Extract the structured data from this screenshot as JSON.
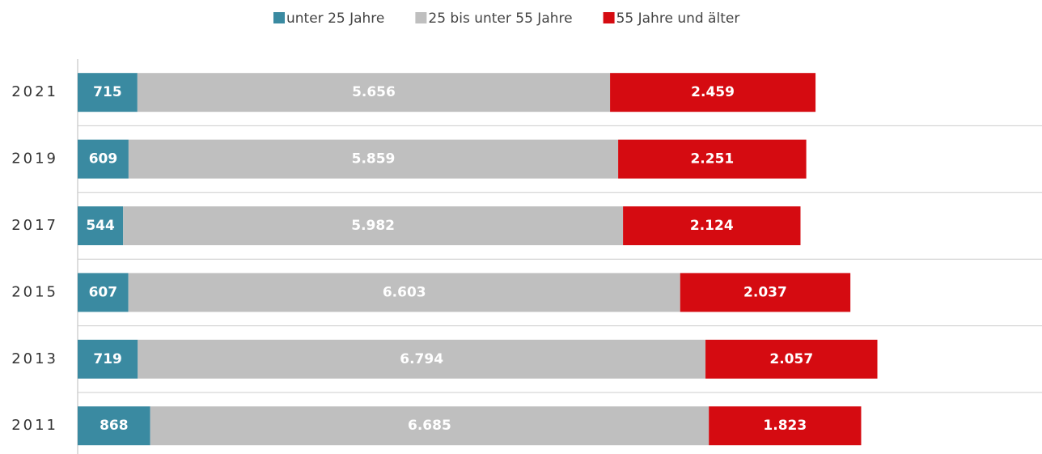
{
  "chart_data": {
    "type": "stacked-bar-horizontal",
    "categories": [
      "2021",
      "2019",
      "2017",
      "2015",
      "2013",
      "2011"
    ],
    "series": [
      {
        "name": "unter 25 Jahre",
        "color": "#3a8aa1",
        "values": [
          715,
          609,
          544,
          607,
          719,
          868
        ],
        "value_labels": [
          "715",
          "609",
          "544",
          "607",
          "719",
          "868"
        ]
      },
      {
        "name": "25 bis unter 55 Jahre",
        "color": "#bfbfbf",
        "values": [
          5656,
          5859,
          5982,
          6603,
          6794,
          6685
        ],
        "value_labels": [
          "5.656",
          "5.859",
          "5.982",
          "6.603",
          "6.794",
          "6.685"
        ]
      },
      {
        "name": "55 Jahre und älter",
        "color": "#d50b11",
        "values": [
          2459,
          2251,
          2124,
          2037,
          2057,
          1823
        ],
        "value_labels": [
          "2.459",
          "2.251",
          "2.124",
          "2.037",
          "2.057",
          "1.823"
        ]
      }
    ],
    "xlim": [
      0,
      11540
    ]
  }
}
